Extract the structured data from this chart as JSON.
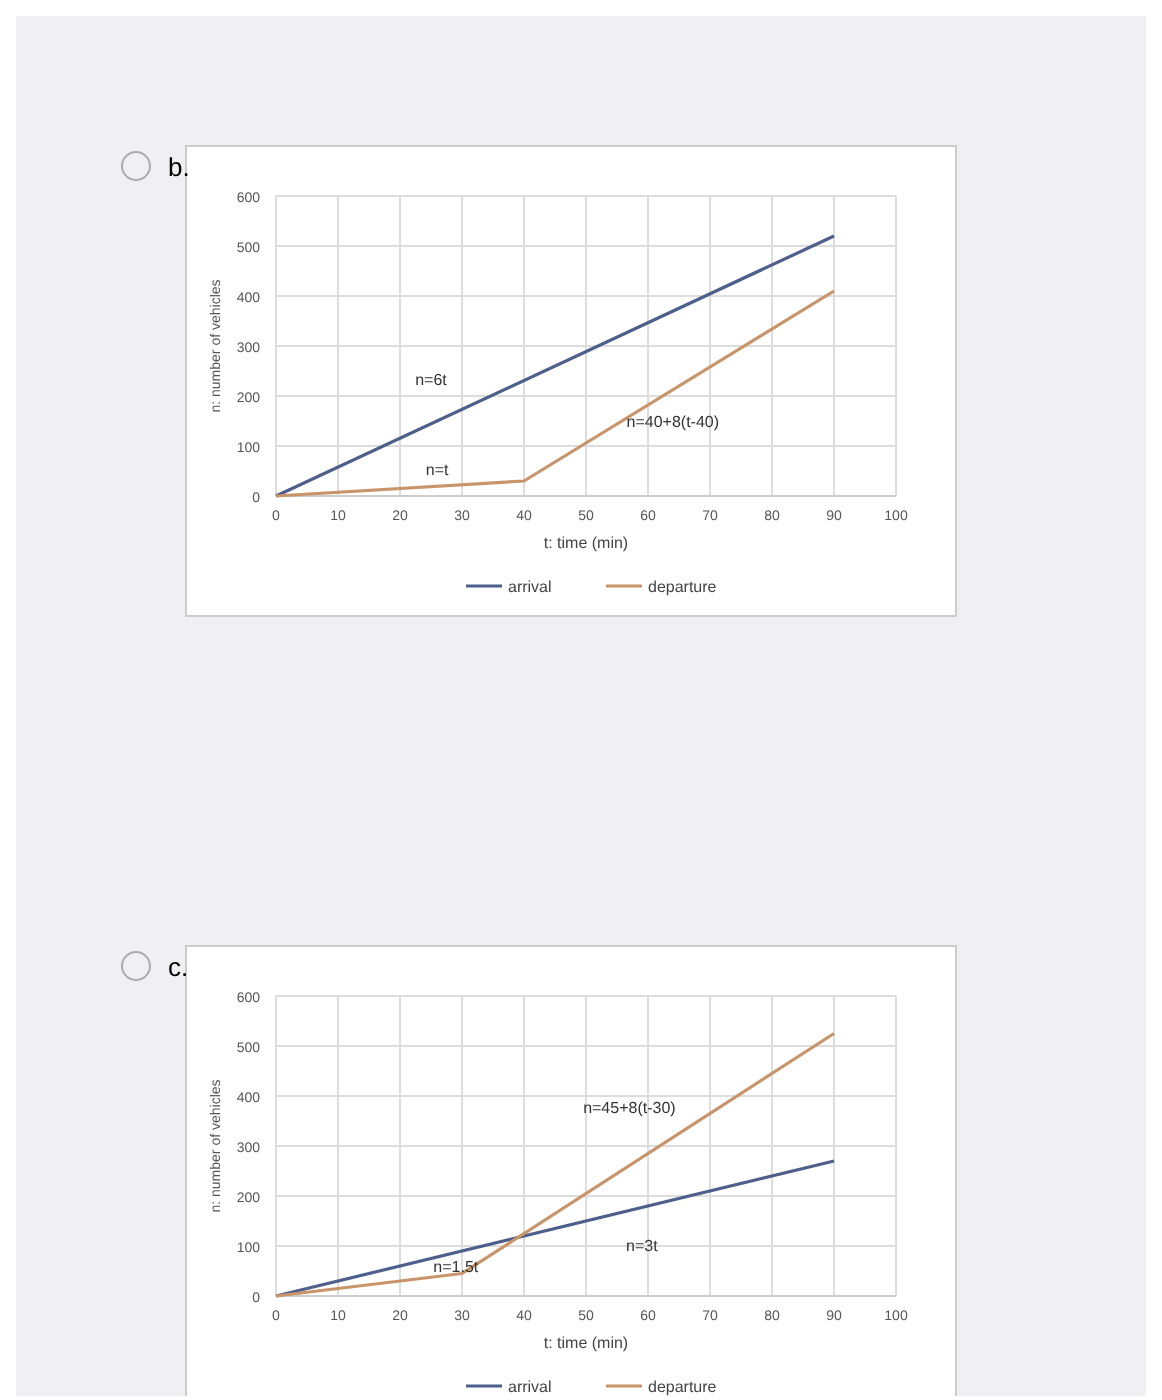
{
  "chart_data": [
    {
      "type": "line",
      "title": "b.",
      "xlabel": "t: time (min)",
      "ylabel": "n: number of vehicles",
      "xlim": [
        0,
        100
      ],
      "ylim": [
        0,
        600
      ],
      "xticks": [
        0,
        10,
        20,
        30,
        40,
        50,
        60,
        70,
        80,
        90,
        100
      ],
      "yticks": [
        0,
        100,
        200,
        300,
        400,
        500,
        600
      ],
      "grid": true,
      "legend": "bottom",
      "series": [
        {
          "name": "arrival",
          "color": "#4e5f8c",
          "x": [
            0,
            90
          ],
          "values": [
            0,
            520
          ]
        },
        {
          "name": "departure",
          "color": "#c8946a",
          "x": [
            0,
            40,
            90
          ],
          "values": [
            0,
            30,
            410
          ]
        }
      ],
      "annotations": [
        "n=6t",
        "n=t",
        "n=40+8(t-40)"
      ]
    },
    {
      "type": "line",
      "title": "c.",
      "xlabel": "t: time (min)",
      "ylabel": "n: number of vehicles",
      "xlim": [
        0,
        100
      ],
      "ylim": [
        0,
        600
      ],
      "xticks": [
        0,
        10,
        20,
        30,
        40,
        50,
        60,
        70,
        80,
        90,
        100
      ],
      "yticks": [
        0,
        100,
        200,
        300,
        400,
        500,
        600
      ],
      "grid": true,
      "legend": "bottom",
      "series": [
        {
          "name": "arrival",
          "color": "#4e5f8c",
          "x": [
            0,
            90
          ],
          "values": [
            0,
            270
          ]
        },
        {
          "name": "departure",
          "color": "#c8946a",
          "x": [
            0,
            30,
            90
          ],
          "values": [
            0,
            45,
            525
          ]
        }
      ],
      "annotations": [
        "n=45+8(t-30)",
        "n=3t",
        "n=1.5t"
      ]
    }
  ]
}
